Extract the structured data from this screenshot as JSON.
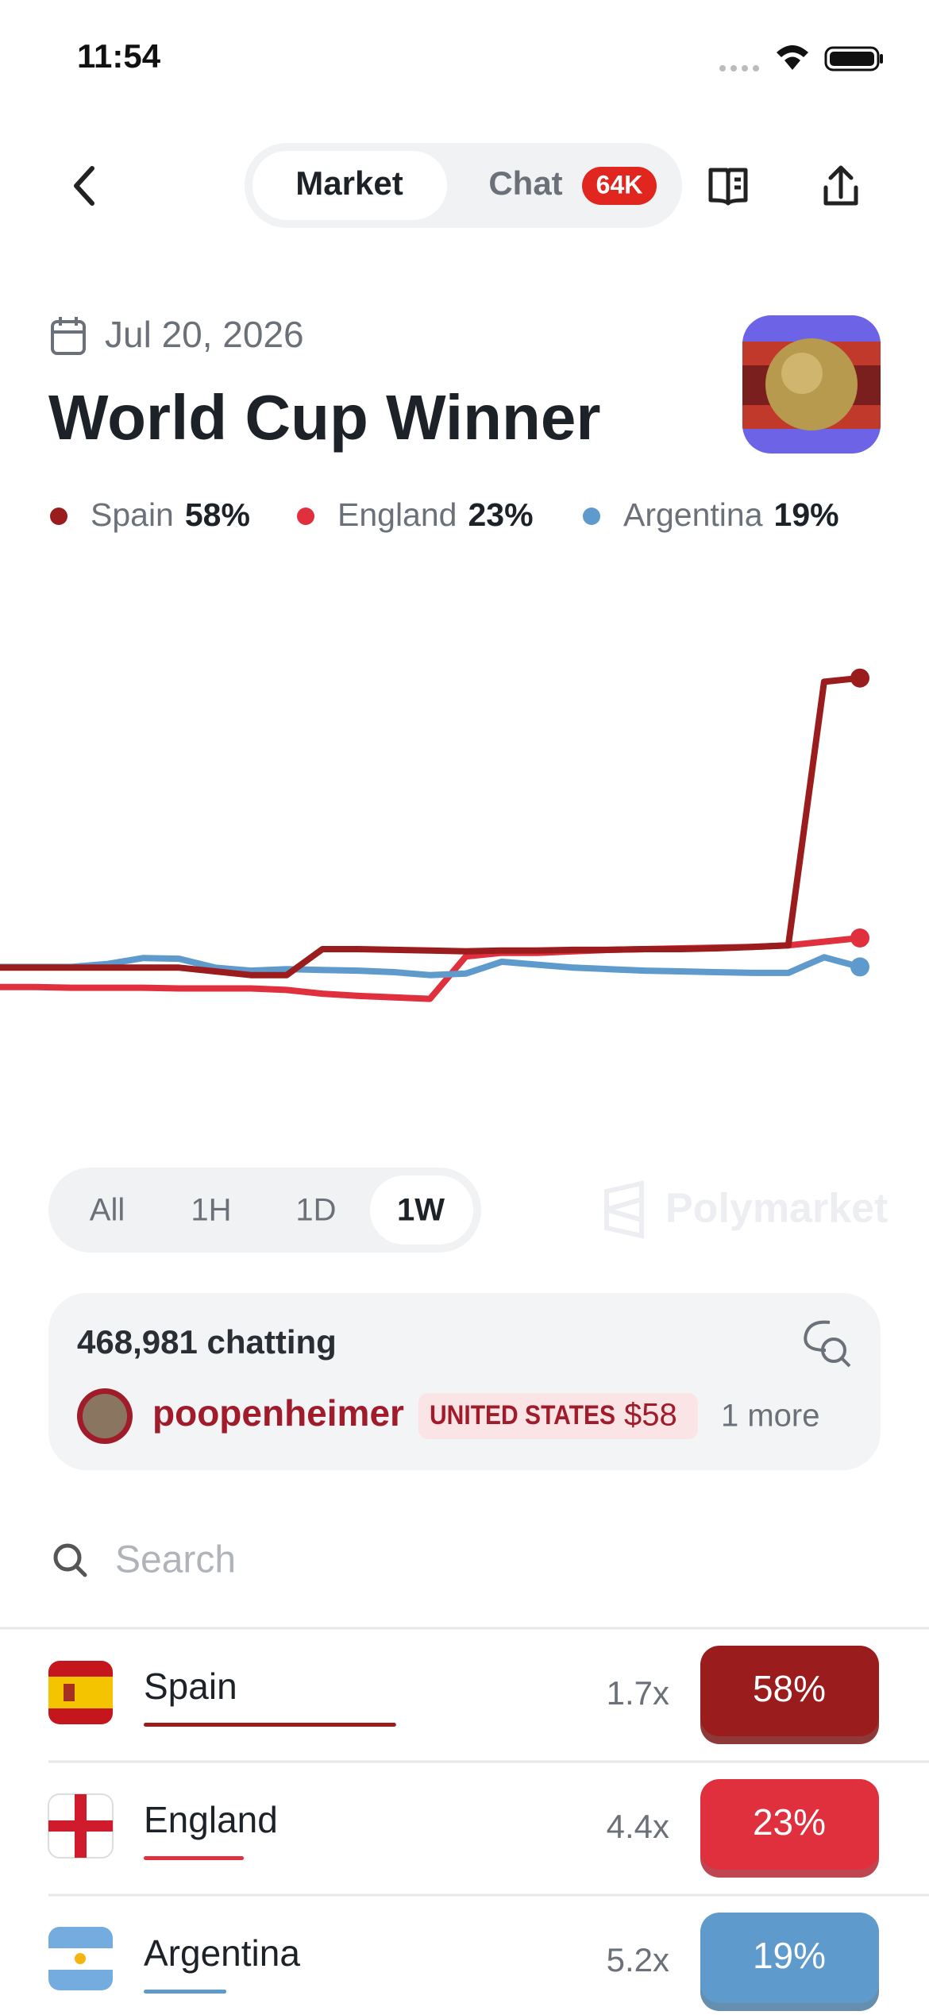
{
  "status_bar": {
    "time": "11:54"
  },
  "nav": {
    "tabs": [
      "Market",
      "Chat"
    ],
    "active_tab": 0,
    "chat_badge": "64K"
  },
  "market": {
    "date": "Jul 20, 2026",
    "title": "World Cup Winner"
  },
  "chart_data": {
    "type": "line",
    "series": [
      {
        "name": "Spain",
        "color": "#9b1c1c",
        "label": "58%",
        "values": [
          19,
          19,
          19,
          19,
          19,
          19,
          18.5,
          18,
          18,
          21.5,
          21.5,
          21.4,
          21.3,
          21.2,
          21.3,
          21.3,
          21.4,
          21.4,
          21.5,
          21.5,
          21.6,
          21.8,
          22,
          57.5,
          58
        ]
      },
      {
        "name": "England",
        "color": "#e0303e",
        "label": "23%",
        "values": [
          16.4,
          16.4,
          16.3,
          16.3,
          16.3,
          16.2,
          16.2,
          16.2,
          16,
          15.5,
          15.2,
          15,
          14.8,
          20.5,
          21,
          21,
          21.2,
          21.4,
          21.5,
          21.6,
          21.7,
          21.8,
          22,
          22.5,
          23
        ]
      },
      {
        "name": "Argentina",
        "color": "#5e9acb",
        "label": "19%",
        "values": [
          19.1,
          19.1,
          19.1,
          19.5,
          20.3,
          20.2,
          19,
          18.6,
          18.8,
          18.7,
          18.6,
          18.4,
          18,
          18.2,
          19.8,
          19.4,
          19,
          18.8,
          18.6,
          18.5,
          18.4,
          18.3,
          18.3,
          20.4,
          19.1
        ]
      }
    ]
  },
  "time_ranges": {
    "options": [
      "All",
      "1H",
      "1D",
      "1W"
    ],
    "active": 3
  },
  "brand": "Polymarket",
  "chat": {
    "count": "468,981 chatting",
    "user": "poopenheimer",
    "tag": "UNITED STATES",
    "amount": "$58",
    "more": "1 more"
  },
  "search": {
    "placeholder": "Search"
  },
  "outcomes": [
    {
      "name": "Spain",
      "multiplier": "1.7x",
      "price": 58,
      "price_label": "58%"
    },
    {
      "name": "England",
      "multiplier": "4.4x",
      "price": 23,
      "price_label": "23%"
    },
    {
      "name": "Argentina",
      "multiplier": "5.2x",
      "price": 19,
      "price_label": "19%"
    }
  ]
}
